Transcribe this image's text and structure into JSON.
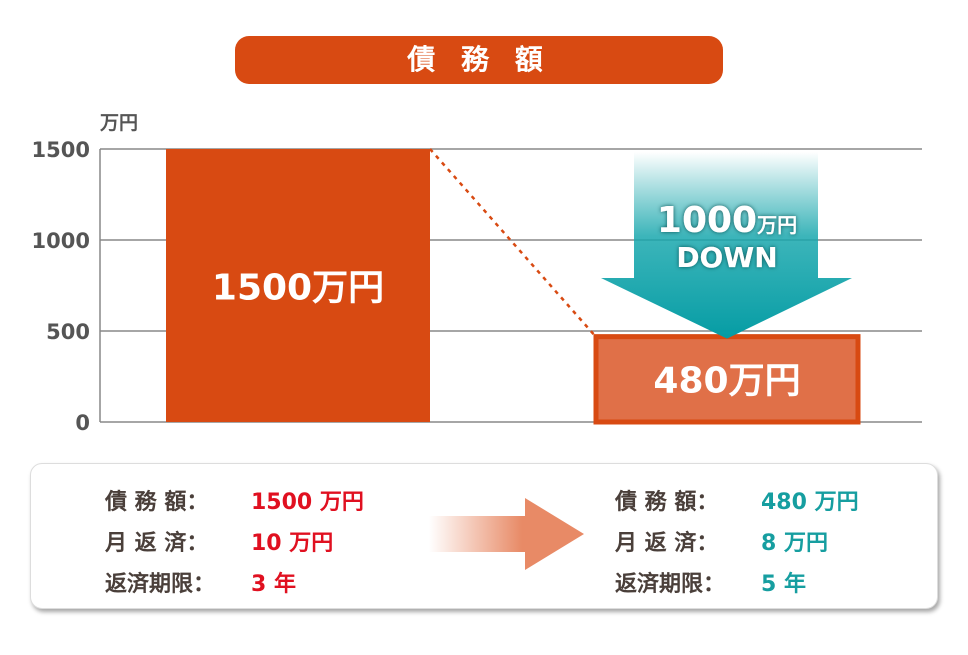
{
  "title": "債 務 額",
  "chart_data": {
    "type": "bar",
    "ylabel": "万円",
    "ylim": [
      0,
      1500
    ],
    "yticks": [
      0,
      500,
      1000,
      1500
    ],
    "grid": true,
    "categories": [
      "",
      ""
    ],
    "values": [
      1500,
      480
    ],
    "data_labels": [
      "1500万円",
      "480万円"
    ],
    "annotation": {
      "line1": "1000",
      "line1_unit": "万円",
      "line2": "DOWN"
    },
    "colors": {
      "bar1": "#d84a12",
      "bar2_fill": "#e07048",
      "bar2_border": "#d84a12",
      "arrow": "#0aa0a6",
      "connector": "#d84a12"
    }
  },
  "summary": {
    "before": [
      {
        "label": "債 務 額：",
        "value": "1500 万円"
      },
      {
        "label": "月 返 済：",
        "value": "10 万円"
      },
      {
        "label": "返済期限：",
        "value": "3 年"
      }
    ],
    "after": [
      {
        "label": "債 務 額：",
        "value": "480 万円"
      },
      {
        "label": "月 返 済：",
        "value": "8 万円"
      },
      {
        "label": "返済期限：",
        "value": "5 年"
      }
    ],
    "arrow_icon": "arrow-right-icon"
  }
}
